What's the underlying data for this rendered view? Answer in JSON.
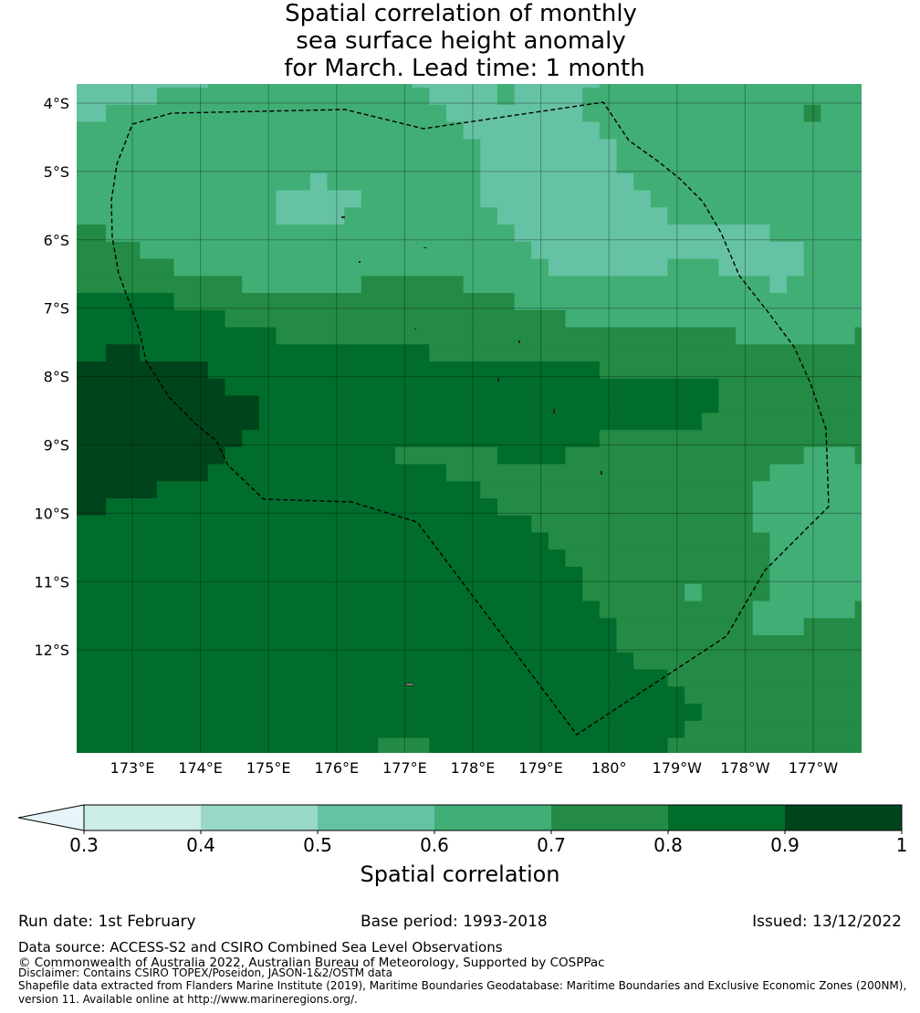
{
  "title": {
    "line1": "Spatial correlation of monthly",
    "line2": "sea surface height anomaly",
    "line3": "for March. Lead time: 1 month"
  },
  "chart_data": {
    "type": "heatmap",
    "title": "Spatial correlation of monthly sea surface height anomaly for March. Lead time: 1 month",
    "colorbar_label": "Spatial correlation",
    "colorbar_ticks": [
      "0.3",
      "0.4",
      "0.5",
      "0.6",
      "0.7",
      "0.8",
      "0.9",
      "1"
    ],
    "colorbar_extend": "min",
    "extend_color": "#e5f5f9",
    "levels": [
      {
        "range": [
          0.3,
          0.4
        ],
        "color": "#ccece6"
      },
      {
        "range": [
          0.4,
          0.5
        ],
        "color": "#99d8c9"
      },
      {
        "range": [
          0.5,
          0.6
        ],
        "color": "#66c2a4"
      },
      {
        "range": [
          0.6,
          0.7
        ],
        "color": "#41ae76"
      },
      {
        "range": [
          0.7,
          0.8
        ],
        "color": "#238b45"
      },
      {
        "range": [
          0.8,
          0.9
        ],
        "color": "#006d2c"
      },
      {
        "range": [
          0.9,
          1.0
        ],
        "color": "#00441b"
      }
    ],
    "lon_ticks": [
      "173°E",
      "174°E",
      "175°E",
      "176°E",
      "177°E",
      "178°E",
      "179°E",
      "180°",
      "179°W",
      "178°W",
      "177°W"
    ],
    "lat_ticks": [
      "4°S",
      "5°S",
      "6°S",
      "7°S",
      "8°S",
      "9°S",
      "10°S",
      "11°S",
      "12°S"
    ],
    "grid_resolution_deg": 0.25,
    "grid_note": "rows north to south, run-length [level_index, count]; level_index into levels",
    "grid": [
      [
        [
          2,
          8
        ],
        [
          3,
          12
        ],
        [
          2,
          5
        ],
        [
          3,
          1
        ],
        [
          2,
          5
        ],
        [
          3,
          16
        ]
      ],
      [
        [
          2,
          5
        ],
        [
          3,
          16
        ],
        [
          2,
          4
        ],
        [
          3,
          1
        ],
        [
          2,
          4
        ],
        [
          3,
          17
        ]
      ],
      [
        [
          2,
          2
        ],
        [
          3,
          20
        ],
        [
          2,
          8
        ],
        [
          3,
          13
        ],
        [
          4,
          1
        ],
        [
          3,
          3
        ]
      ],
      [
        [
          3,
          23
        ],
        [
          2,
          8
        ],
        [
          3,
          16
        ]
      ],
      [
        [
          3,
          24
        ],
        [
          2,
          8
        ],
        [
          3,
          15
        ]
      ],
      [
        [
          3,
          24
        ],
        [
          2,
          8
        ],
        [
          3,
          15
        ]
      ],
      [
        [
          3,
          14
        ],
        [
          2,
          1
        ],
        [
          3,
          9
        ],
        [
          2,
          9
        ],
        [
          3,
          14
        ]
      ],
      [
        [
          3,
          12
        ],
        [
          2,
          5
        ],
        [
          3,
          7
        ],
        [
          2,
          10
        ],
        [
          3,
          13
        ]
      ],
      [
        [
          3,
          12
        ],
        [
          2,
          4
        ],
        [
          3,
          9
        ],
        [
          2,
          10
        ],
        [
          3,
          12
        ]
      ],
      [
        [
          4,
          2
        ],
        [
          3,
          24
        ],
        [
          2,
          15
        ],
        [
          3,
          6
        ]
      ],
      [
        [
          4,
          4
        ],
        [
          3,
          23
        ],
        [
          2,
          16
        ],
        [
          3,
          4
        ]
      ],
      [
        [
          4,
          6
        ],
        [
          3,
          22
        ],
        [
          2,
          7
        ],
        [
          3,
          3
        ],
        [
          2,
          5
        ],
        [
          3,
          4
        ]
      ],
      [
        [
          4,
          10
        ],
        [
          3,
          7
        ],
        [
          4,
          6
        ],
        [
          3,
          18
        ],
        [
          2,
          1
        ],
        [
          3,
          5
        ]
      ],
      [
        [
          5,
          6
        ],
        [
          4,
          20
        ],
        [
          3,
          21
        ]
      ],
      [
        [
          5,
          9
        ],
        [
          4,
          20
        ],
        [
          3,
          18
        ]
      ],
      [
        [
          5,
          12
        ],
        [
          4,
          27
        ],
        [
          3,
          7
        ],
        [
          4,
          1
        ]
      ],
      [
        [
          5,
          2
        ],
        [
          6,
          2
        ],
        [
          5,
          17
        ],
        [
          4,
          26
        ]
      ],
      [
        [
          6,
          8
        ],
        [
          5,
          23
        ],
        [
          4,
          16
        ]
      ],
      [
        [
          6,
          9
        ],
        [
          5,
          29
        ],
        [
          4,
          9
        ]
      ],
      [
        [
          6,
          11
        ],
        [
          5,
          27
        ],
        [
          4,
          9
        ]
      ],
      [
        [
          6,
          11
        ],
        [
          5,
          26
        ],
        [
          4,
          10
        ]
      ],
      [
        [
          6,
          10
        ],
        [
          5,
          21
        ],
        [
          4,
          16
        ]
      ],
      [
        [
          6,
          9
        ],
        [
          5,
          10
        ],
        [
          4,
          6
        ],
        [
          5,
          4
        ],
        [
          4,
          14
        ],
        [
          3,
          3
        ],
        [
          4,
          1
        ]
      ],
      [
        [
          6,
          8
        ],
        [
          5,
          14
        ],
        [
          4,
          19
        ],
        [
          3,
          6
        ]
      ],
      [
        [
          6,
          5
        ],
        [
          5,
          19
        ],
        [
          4,
          16
        ],
        [
          3,
          7
        ]
      ],
      [
        [
          6,
          2
        ],
        [
          5,
          23
        ],
        [
          4,
          15
        ],
        [
          3,
          7
        ]
      ],
      [
        [
          5,
          27
        ],
        [
          4,
          13
        ],
        [
          3,
          7
        ]
      ],
      [
        [
          5,
          28
        ],
        [
          4,
          13
        ],
        [
          3,
          6
        ]
      ],
      [
        [
          5,
          29
        ],
        [
          4,
          12
        ],
        [
          3,
          6
        ]
      ],
      [
        [
          5,
          30
        ],
        [
          4,
          11
        ],
        [
          3,
          6
        ]
      ],
      [
        [
          5,
          30
        ],
        [
          4,
          6
        ],
        [
          3,
          1
        ],
        [
          4,
          4
        ],
        [
          3,
          6
        ]
      ],
      [
        [
          5,
          31
        ],
        [
          4,
          9
        ],
        [
          3,
          6
        ],
        [
          4,
          1
        ]
      ],
      [
        [
          5,
          32
        ],
        [
          4,
          8
        ],
        [
          3,
          3
        ],
        [
          4,
          4
        ]
      ],
      [
        [
          5,
          32
        ],
        [
          4,
          15
        ]
      ],
      [
        [
          5,
          33
        ],
        [
          4,
          14
        ]
      ],
      [
        [
          5,
          35
        ],
        [
          4,
          12
        ]
      ],
      [
        [
          5,
          36
        ],
        [
          4,
          11
        ]
      ],
      [
        [
          5,
          37
        ],
        [
          4,
          10
        ]
      ],
      [
        [
          5,
          36
        ],
        [
          4,
          11
        ]
      ],
      [
        [
          5,
          18
        ],
        [
          4,
          3
        ],
        [
          5,
          14
        ],
        [
          4,
          12
        ]
      ]
    ]
  },
  "footer": {
    "run_date": "Run date: 1st February",
    "base_period": "Base period: 1993-2018",
    "issued": "Issued: 13/12/2022",
    "data_source": "Data source: ACCESS-S2 and CSIRO Combined Sea Level Observations",
    "copyright": "© Commonwealth of Australia 2022, Australian Bureau of Meteorology, Supported by COSPPac",
    "disclaimer": "Disclaimer: Contains CSIRO TOPEX/Poseidon, JASON-1&2/OSTM data",
    "shapefile_line1": "Shapefile data extracted from Flanders Marine Institute (2019), Maritime Boundaries Geodatabase: Maritime Boundaries and Exclusive Economic Zones (200NM),",
    "shapefile_line2": "version 11. Available online at http://www.marineregions.org/."
  }
}
